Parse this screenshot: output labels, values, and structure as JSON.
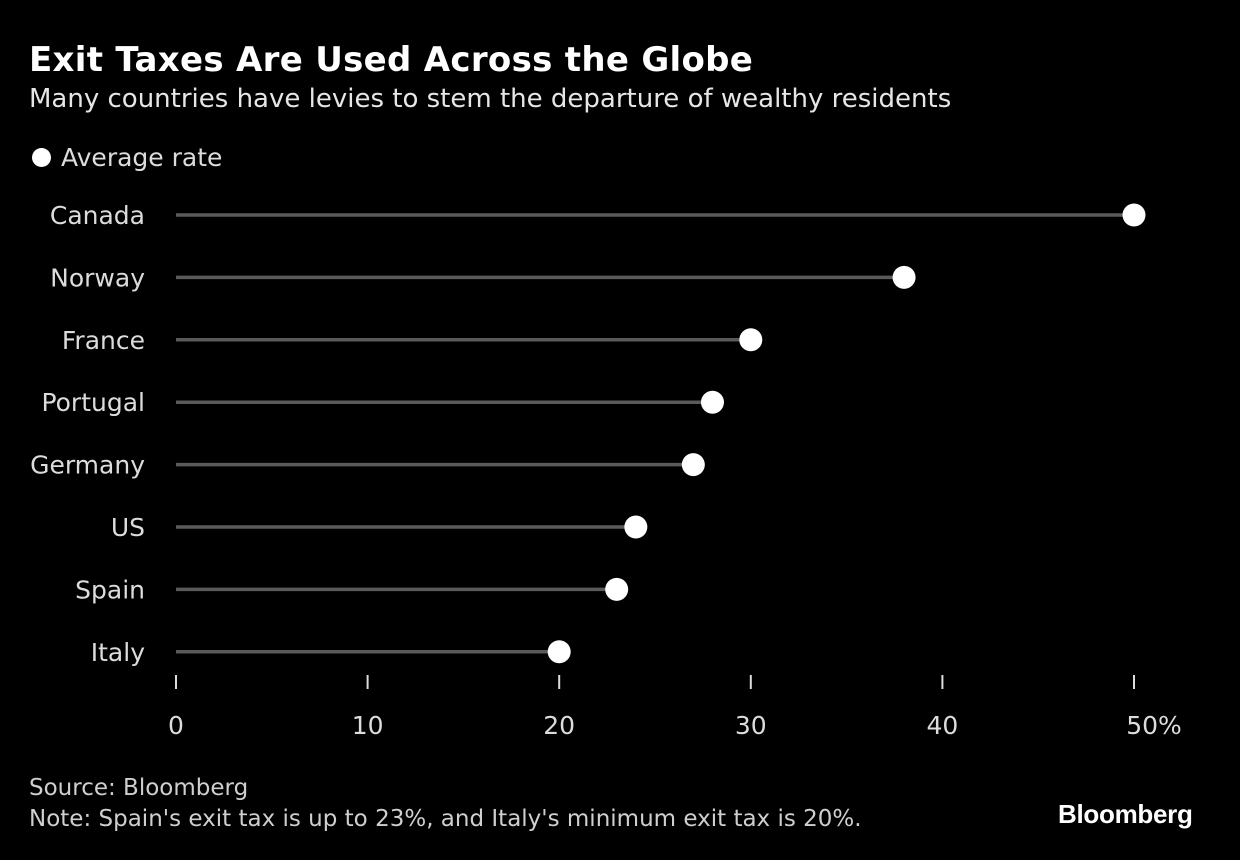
{
  "title": "Exit Taxes Are Used Across the Globe",
  "subtitle": "Many countries have levies to stem the departure of wealthy residents",
  "source": "Source: Bloomberg",
  "note": "Note: Spain's exit tax is up to 23%, and Italy's minimum exit tax is 20%.",
  "logo": "Bloomberg",
  "chart_data": {
    "type": "lollipop",
    "orientation": "horizontal",
    "legend": "Average rate",
    "legend_position": "top-left",
    "categories": [
      "Canada",
      "Norway",
      "France",
      "Portugal",
      "Germany",
      "US",
      "Spain",
      "Italy"
    ],
    "series": [
      {
        "name": "Average rate",
        "values": [
          50,
          38,
          30,
          28,
          27,
          24,
          23,
          20
        ]
      }
    ],
    "xlim": [
      0,
      50
    ],
    "xticks": [
      0,
      10,
      20,
      30,
      40,
      50
    ],
    "xtick_labels": [
      "0",
      "10",
      "20",
      "30",
      "40",
      "50%"
    ],
    "grid": false,
    "colors": {
      "background": "#000000",
      "stem": "#5a5a5a",
      "dot": "#ffffff",
      "text": "#dcdcdc"
    }
  }
}
